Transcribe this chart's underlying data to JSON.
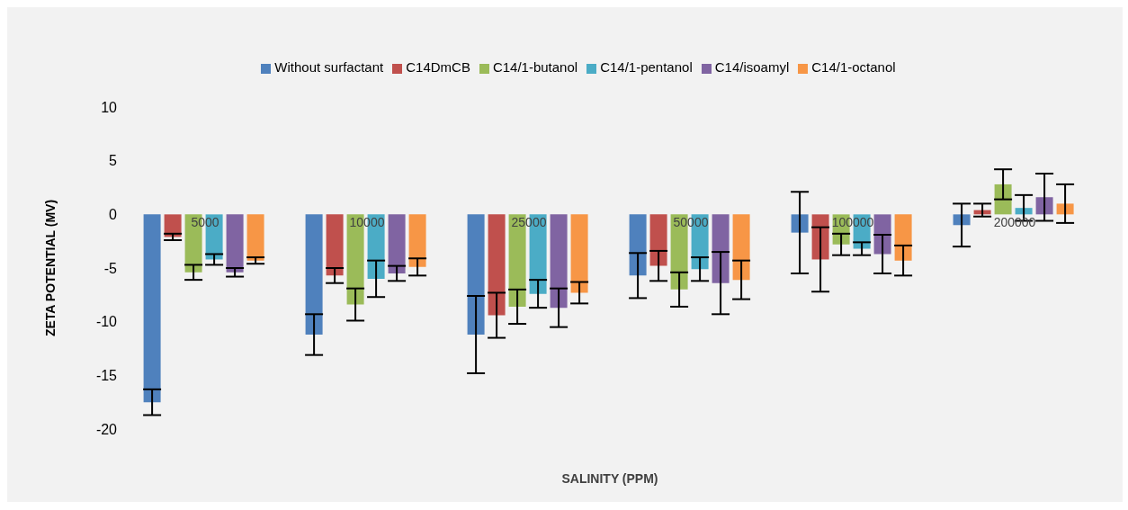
{
  "chart_data": {
    "type": "bar",
    "xlabel": "SALINITY (PPM)",
    "ylabel": "ZETA POTENTIAL (MV)",
    "categories": [
      "5000",
      "10000",
      "25000",
      "50000",
      "100000",
      "200000"
    ],
    "series": [
      {
        "name": "Without surfactant",
        "color": "#4f81bd",
        "values": [
          -17.5,
          -11.2,
          -11.2,
          -5.7,
          -1.7,
          -1.0
        ],
        "errors": [
          1.2,
          1.9,
          3.6,
          2.1,
          3.8,
          2.0
        ]
      },
      {
        "name": "C14DmCB",
        "color": "#c0504d",
        "values": [
          -2.1,
          -5.7,
          -9.4,
          -4.8,
          -4.2,
          0.4
        ],
        "errors": [
          0.3,
          0.7,
          2.1,
          1.4,
          3.0,
          0.6
        ]
      },
      {
        "name": "C14/1-butanol",
        "color": "#9bbb59",
        "values": [
          -5.4,
          -8.4,
          -8.6,
          -7.0,
          -2.8,
          2.8
        ],
        "errors": [
          0.7,
          1.5,
          1.6,
          1.6,
          1.0,
          1.4
        ]
      },
      {
        "name": "C14/1-pentanol",
        "color": "#4bacc6",
        "values": [
          -4.2,
          -6.0,
          -7.4,
          -5.1,
          -3.2,
          0.6
        ],
        "errors": [
          0.5,
          1.7,
          1.3,
          1.1,
          0.6,
          1.2
        ]
      },
      {
        "name": "C14/isoamyl",
        "color": "#8064a2",
        "values": [
          -5.4,
          -5.5,
          -8.7,
          -6.4,
          -3.7,
          1.6
        ],
        "errors": [
          0.4,
          0.7,
          1.8,
          2.9,
          1.8,
          2.2
        ]
      },
      {
        "name": "C14/1-octanol",
        "color": "#f79646",
        "values": [
          -4.3,
          -4.9,
          -7.3,
          -6.1,
          -4.3,
          1.0
        ],
        "errors": [
          0.3,
          0.8,
          1.0,
          1.8,
          1.4,
          1.8
        ]
      }
    ],
    "ylim": [
      -20,
      10
    ],
    "yticks": [
      -20,
      -15,
      -10,
      -5,
      0,
      5,
      10
    ],
    "grid": false,
    "legend": "top"
  }
}
